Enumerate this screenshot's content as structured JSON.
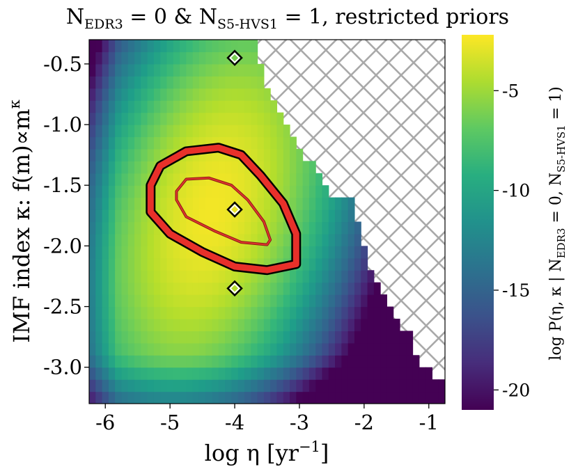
{
  "chart_data": {
    "type": "heatmap",
    "title": {
      "main": "N",
      "sub1": "EDR3",
      "mid": " = 0 & N",
      "sub2": "S5-HVS1",
      "tail": " = 1, restricted priors"
    },
    "xlabel": {
      "main": "log η [yr",
      "sup": "−1",
      "tail": "]"
    },
    "ylabel": {
      "main": "IMF index κ: f(m)∝m",
      "sup": "κ"
    },
    "colorbar_label": {
      "a": "log P(η, κ | N",
      "b": "EDR3",
      "c": " = 0, N",
      "d": "S5-HVS1",
      "e": " = 1)"
    },
    "xlim": [
      -6.25,
      -0.75
    ],
    "ylim": [
      -3.3,
      -0.3
    ],
    "x_ticks": [
      {
        "value": -6,
        "label": "-6"
      },
      {
        "value": -5,
        "label": "-5"
      },
      {
        "value": -4,
        "label": "-4"
      },
      {
        "value": -3,
        "label": "-3"
      },
      {
        "value": -2,
        "label": "-2"
      },
      {
        "value": -1,
        "label": "-1"
      }
    ],
    "y_ticks": [
      {
        "value": -0.5,
        "label": "-0.5"
      },
      {
        "value": -1.0,
        "label": "-1.0"
      },
      {
        "value": -1.5,
        "label": "-1.5"
      },
      {
        "value": -2.0,
        "label": "-2.0"
      },
      {
        "value": -2.5,
        "label": "-2.5"
      },
      {
        "value": -3.0,
        "label": "-3.0"
      }
    ],
    "colorbar": {
      "range": [
        -21,
        -2.2
      ],
      "ticks": [
        {
          "value": -5,
          "label": "-5"
        },
        {
          "value": -10,
          "label": "-10"
        },
        {
          "value": -15,
          "label": "-15"
        },
        {
          "value": -20,
          "label": "-20"
        }
      ]
    },
    "peak": {
      "x": -4.35,
      "y": -1.7,
      "value": -2.5
    },
    "markers": [
      {
        "x": -4.0,
        "y": -0.45
      },
      {
        "x": -4.0,
        "y": -1.7
      },
      {
        "x": -4.0,
        "y": -2.35
      }
    ],
    "excluded_region": "hatched (upper-right, no data)",
    "contours": [
      {
        "name": "inner",
        "points": [
          [
            -4.9,
            -1.55
          ],
          [
            -4.75,
            -1.45
          ],
          [
            -4.4,
            -1.44
          ],
          [
            -4.05,
            -1.5
          ],
          [
            -3.8,
            -1.62
          ],
          [
            -3.55,
            -1.8
          ],
          [
            -3.45,
            -1.95
          ],
          [
            -3.5,
            -1.99
          ],
          [
            -3.9,
            -1.97
          ],
          [
            -4.3,
            -1.88
          ],
          [
            -4.75,
            -1.76
          ],
          [
            -4.9,
            -1.62
          ]
        ]
      },
      {
        "name": "outer",
        "points": [
          [
            -5.3,
            -1.5
          ],
          [
            -5.15,
            -1.34
          ],
          [
            -4.75,
            -1.22
          ],
          [
            -4.25,
            -1.19
          ],
          [
            -3.9,
            -1.25
          ],
          [
            -3.6,
            -1.42
          ],
          [
            -3.25,
            -1.65
          ],
          [
            -3.05,
            -1.9
          ],
          [
            -3.05,
            -2.15
          ],
          [
            -3.5,
            -2.2
          ],
          [
            -4.0,
            -2.17
          ],
          [
            -4.5,
            -2.05
          ],
          [
            -5.0,
            -1.9
          ],
          [
            -5.3,
            -1.72
          ]
        ]
      }
    ]
  }
}
